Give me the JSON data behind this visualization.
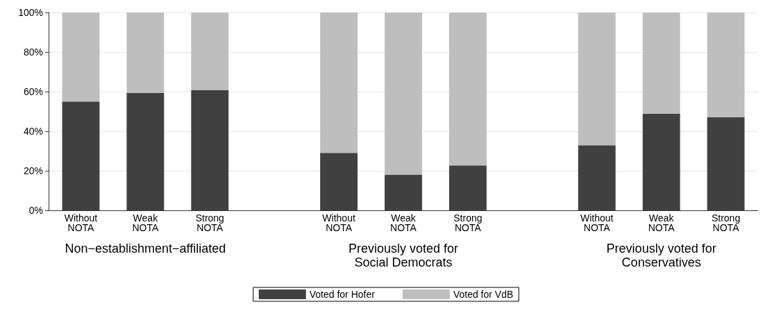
{
  "chart_data": {
    "type": "bar",
    "stacked": true,
    "categories": [
      "Without\nNOTA",
      "Weak\nNOTA",
      "Strong\nNOTA",
      null,
      "Without\nNOTA",
      "Weak\nNOTA",
      "Strong\nNOTA",
      null,
      "Without\nNOTA",
      "Weak\nNOTA",
      "Strong\nNOTA"
    ],
    "series": [
      {
        "name": "Voted for Hofer",
        "color": "#404040",
        "values": [
          55,
          59.3,
          60.7,
          null,
          29,
          18.1,
          22.7,
          null,
          32.9,
          48.8,
          47
        ]
      },
      {
        "name": "Voted for VdB",
        "color": "#bebebe",
        "values": [
          45,
          40.7,
          39.3,
          null,
          71,
          81.9,
          77.3,
          null,
          67.1,
          51.2,
          53
        ]
      }
    ],
    "ylim": [
      0,
      100
    ],
    "yticks": [
      {
        "value": 0,
        "label": "0%"
      },
      {
        "value": 20,
        "label": "20%"
      },
      {
        "value": 40,
        "label": "40%"
      },
      {
        "value": 60,
        "label": "60%"
      },
      {
        "value": 80,
        "label": "80%"
      },
      {
        "value": 100,
        "label": "100%"
      }
    ],
    "annotations": [
      "Non−establishment−affiliated",
      "Previously voted for\nSocial Democrats",
      "Previously voted for\nConservatives"
    ],
    "grid": "y",
    "legend": "bottom"
  }
}
